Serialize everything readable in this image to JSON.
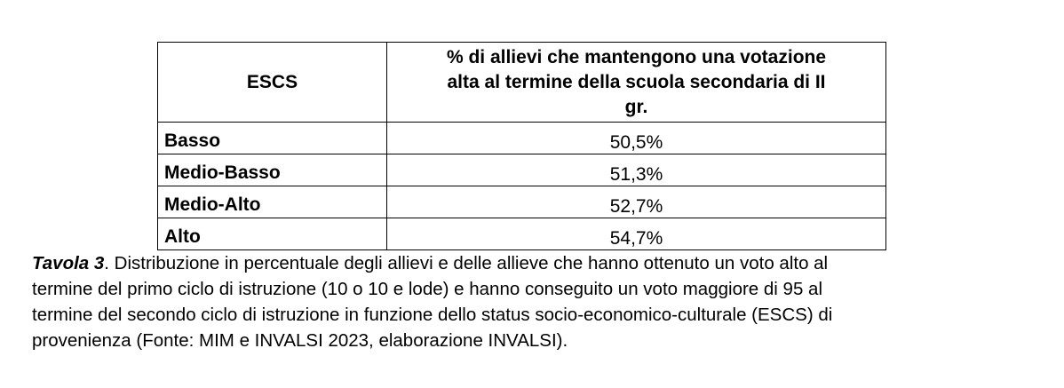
{
  "table": {
    "header": {
      "col1": "ESCS",
      "col2_lines": [
        "% di allievi che mantengono una votazione",
        "alta al termine della scuola secondaria di II",
        "gr."
      ]
    },
    "rows": [
      {
        "label": "Basso",
        "value": "50,5%"
      },
      {
        "label": "Medio-Basso",
        "value": "51,3%"
      },
      {
        "label": "Medio-Alto",
        "value": "52,7%"
      },
      {
        "label": "Alto",
        "value": "54,7%"
      }
    ]
  },
  "caption": {
    "label": "Tavola 3",
    "line1": ". Distribuzione in percentuale degli allievi e delle allieve che hanno ottenuto un voto alto al",
    "line2": "termine del primo ciclo di istruzione (10 o 10 e lode) e hanno conseguito un voto maggiore di 95 al",
    "line3": "termine del secondo ciclo di istruzione in funzione dello status socio-economico-culturale (ESCS) di",
    "line4": "provenienza (Fonte: MIM e INVALSI 2023, elaborazione INVALSI)."
  }
}
